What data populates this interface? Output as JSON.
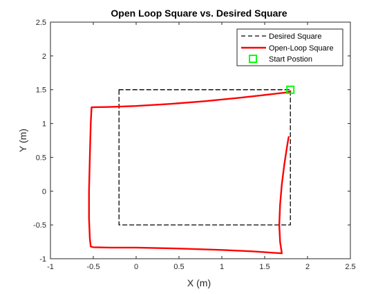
{
  "chart_data": {
    "type": "line",
    "title": "Open Loop Square vs. Desired Square",
    "xlabel": "X (m)",
    "ylabel": "Y (m)",
    "xlim": [
      -1,
      2.5
    ],
    "ylim": [
      -1,
      2.5
    ],
    "xticks": [
      -1,
      -0.5,
      0,
      0.5,
      1,
      1.5,
      2,
      2.5
    ],
    "yticks": [
      -1,
      -0.5,
      0,
      0.5,
      1,
      1.5,
      2,
      2.5
    ],
    "xtick_labels": [
      "-1",
      "-0.5",
      "0",
      "0.5",
      "1",
      "1.5",
      "2",
      "2.5"
    ],
    "ytick_labels": [
      "-1",
      "-0.5",
      "0",
      "0.5",
      "1",
      "1.5",
      "2",
      "2.5"
    ],
    "grid": false,
    "legend_position": "top-right",
    "series": [
      {
        "name": "Desired Square",
        "style": "dashed",
        "color": "#000000",
        "x": [
          -0.2,
          1.8,
          1.8,
          -0.2,
          -0.2
        ],
        "y": [
          1.5,
          1.5,
          -0.5,
          -0.5,
          1.5
        ]
      },
      {
        "name": "Open-Loop Square",
        "style": "solid",
        "color": "#ff0000",
        "x": [
          1.8,
          1.76,
          1.55,
          1.2,
          0.8,
          0.4,
          0.0,
          -0.3,
          -0.52,
          -0.53,
          -0.54,
          -0.55,
          -0.55,
          -0.54,
          -0.53,
          -0.5,
          -0.3,
          0.0,
          0.5,
          1.0,
          1.35,
          1.7,
          1.68,
          1.67,
          1.68,
          1.7,
          1.73,
          1.76,
          1.78
        ],
        "y": [
          1.48,
          1.46,
          1.43,
          1.38,
          1.33,
          1.29,
          1.26,
          1.245,
          1.24,
          1.0,
          0.5,
          0.0,
          -0.4,
          -0.7,
          -0.82,
          -0.83,
          -0.835,
          -0.835,
          -0.85,
          -0.87,
          -0.89,
          -0.92,
          -0.75,
          -0.5,
          -0.2,
          0.1,
          0.4,
          0.65,
          0.8
        ]
      },
      {
        "name": "Start Postion",
        "style": "marker-square",
        "color": "#00ff00",
        "x": [
          1.8
        ],
        "y": [
          1.5
        ]
      }
    ]
  }
}
